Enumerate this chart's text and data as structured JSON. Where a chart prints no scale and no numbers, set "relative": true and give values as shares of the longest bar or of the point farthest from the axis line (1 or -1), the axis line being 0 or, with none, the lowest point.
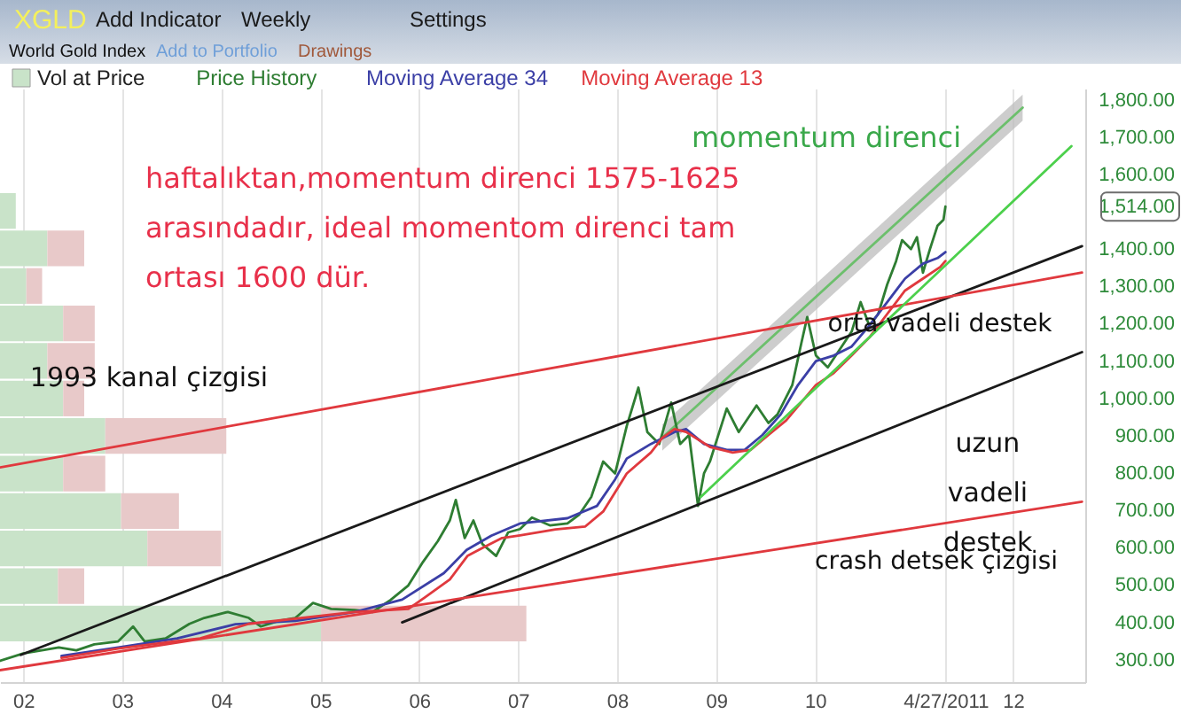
{
  "chart_data": [
    {
      "type": "line",
      "title": "XGLD",
      "subtitle": "World Gold Index",
      "xlim": [
        "2001-10-07",
        "2012-09-24"
      ],
      "ylim": [
        240,
        1830
      ],
      "xticks": [
        {
          "value": "2002-01-01",
          "label": "02"
        },
        {
          "value": "2003-01-01",
          "label": "03"
        },
        {
          "value": "2004-01-01",
          "label": "04"
        },
        {
          "value": "2005-01-01",
          "label": "05"
        },
        {
          "value": "2006-01-01",
          "label": "06"
        },
        {
          "value": "2007-01-01",
          "label": "07"
        },
        {
          "value": "2008-01-01",
          "label": "08"
        },
        {
          "value": "2009-01-01",
          "label": "09"
        },
        {
          "value": "2010-01-01",
          "label": "10"
        },
        {
          "value": "2011-04-27",
          "label": "4/27/2011"
        },
        {
          "value": "2012-01-01",
          "label": "12"
        }
      ],
      "yticks": [
        {
          "value": 300,
          "label": "300.00"
        },
        {
          "value": 400,
          "label": "400.00"
        },
        {
          "value": 500,
          "label": "500.00"
        },
        {
          "value": 600,
          "label": "600.00"
        },
        {
          "value": 700,
          "label": "700.00"
        },
        {
          "value": 800,
          "label": "800.00"
        },
        {
          "value": 900,
          "label": "900.00"
        },
        {
          "value": 1000,
          "label": "1,000.00"
        },
        {
          "value": 1100,
          "label": "1,100.00"
        },
        {
          "value": 1200,
          "label": "1,200.00"
        },
        {
          "value": 1300,
          "label": "1,300.00"
        },
        {
          "value": 1400,
          "label": "1,400.00"
        },
        {
          "value": 1514,
          "label": "1,514.00"
        },
        {
          "value": 1600,
          "label": "1,600.00"
        },
        {
          "value": 1700,
          "label": "1,700.00"
        },
        {
          "value": 1800,
          "label": "1,800.00"
        }
      ],
      "grid": "x",
      "legend": "top left",
      "series": [
        {
          "name": "Price History",
          "color": "#2e7d32",
          "x": [
            "2001-10-07",
            "2002-01-01",
            "2002-05-12",
            "2002-07-16",
            "2002-09-20",
            "2002-12-17",
            "2003-02-10",
            "2003-03-25",
            "2003-06-10",
            "2003-09-06",
            "2003-10-31",
            "2004-01-26",
            "2004-04-12",
            "2004-05-26",
            "2004-07-31",
            "2004-10-01",
            "2004-12-05",
            "2005-02-10",
            "2005-05-08",
            "2005-07-13",
            "2005-09-17",
            "2005-11-22",
            "2006-01-15",
            "2006-03-11",
            "2006-04-24",
            "2006-05-16",
            "2006-06-18",
            "2006-07-20",
            "2006-08-22",
            "2006-10-12",
            "2006-11-25",
            "2007-01-08",
            "2007-02-21",
            "2007-04-28",
            "2007-07-02",
            "2007-08-15",
            "2007-09-28",
            "2007-11-11",
            "2007-12-25",
            "2008-02-06",
            "2008-03-20",
            "2008-04-22",
            "2008-06-05",
            "2008-07-19",
            "2008-08-21",
            "2008-09-23",
            "2008-10-26",
            "2008-11-17",
            "2008-12-09",
            "2009-02-09",
            "2009-03-25",
            "2009-05-30",
            "2009-07-13",
            "2009-08-15",
            "2009-10-09",
            "2009-11-11",
            "2009-12-03",
            "2010-01-04",
            "2010-02-17",
            "2010-04-02",
            "2010-05-16",
            "2010-06-18",
            "2010-07-20",
            "2010-08-22",
            "2010-09-24",
            "2010-10-27",
            "2010-11-18",
            "2010-12-21",
            "2011-01-12",
            "2011-02-03",
            "2011-03-01",
            "2011-03-29",
            "2011-04-20",
            "2011-04-27"
          ],
          "values": [
            297,
            317,
            333,
            325,
            341,
            349,
            389,
            349,
            357,
            396,
            412,
            428,
            412,
            389,
            404,
            412,
            452,
            436,
            433,
            428,
            460,
            499,
            562,
            618,
            673,
            728,
            626,
            673,
            610,
            578,
            641,
            650,
            681,
            660,
            665,
            689,
            736,
            831,
            799,
            926,
            1029,
            910,
            878,
            989,
            878,
            902,
            712,
            799,
            831,
            973,
            910,
            981,
            934,
            957,
            1036,
            1147,
            1218,
            1115,
            1083,
            1131,
            1179,
            1258,
            1195,
            1226,
            1305,
            1368,
            1424,
            1400,
            1432,
            1337,
            1400,
            1463,
            1479,
            1514
          ]
        },
        {
          "name": "Moving Average 34",
          "color": "#3b3fa6",
          "x": [
            "2002-05-22",
            "2002-12-17",
            "2003-07-23",
            "2004-02-23",
            "2004-10-01",
            "2005-05-08",
            "2005-10-30",
            "2006-04-02",
            "2006-06-25",
            "2006-09-24",
            "2007-01-08",
            "2007-07-02",
            "2007-10-19",
            "2007-12-25",
            "2008-02-06",
            "2008-05-05",
            "2008-07-31",
            "2008-09-12",
            "2008-11-17",
            "2009-02-09",
            "2009-04-16",
            "2009-06-21",
            "2009-08-27",
            "2009-10-30",
            "2010-01-04",
            "2010-03-11",
            "2010-05-16",
            "2010-07-20",
            "2010-09-24",
            "2010-11-29",
            "2011-02-03",
            "2011-03-29",
            "2011-04-27"
          ],
          "values": [
            310,
            333,
            357,
            395,
            404,
            428,
            461,
            532,
            594,
            632,
            665,
            679,
            712,
            783,
            839,
            878,
            910,
            918,
            878,
            862,
            862,
            902,
            957,
            1036,
            1100,
            1115,
            1139,
            1195,
            1258,
            1321,
            1361,
            1376,
            1392
          ]
        },
        {
          "name": "Moving Average 13",
          "color": "#e0393e",
          "x": [
            "2002-05-22",
            "2002-12-17",
            "2003-07-23",
            "2003-10-16",
            "2004-04-12",
            "2005-05-08",
            "2005-11-22",
            "2006-01-22",
            "2006-04-24",
            "2006-06-28",
            "2006-08-29",
            "2006-11-03",
            "2007-01-08",
            "2007-05-19",
            "2007-09-06",
            "2007-11-11",
            "2008-02-06",
            "2008-05-05",
            "2008-06-16",
            "2008-07-31",
            "2008-09-12",
            "2008-12-09",
            "2009-03-03",
            "2009-05-08",
            "2009-07-13",
            "2009-09-16",
            "2010-01-04",
            "2010-03-11",
            "2010-05-16",
            "2010-07-20",
            "2010-09-24",
            "2010-11-29",
            "2011-02-03",
            "2011-04-08",
            "2011-04-27"
          ],
          "values": [
            305,
            330,
            350,
            357,
            396,
            428,
            436,
            467,
            515,
            578,
            602,
            626,
            633,
            649,
            657,
            697,
            799,
            855,
            894,
            918,
            910,
            870,
            855,
            862,
            902,
            941,
            1036,
            1068,
            1115,
            1163,
            1226,
            1289,
            1321,
            1352,
            1368
          ]
        },
        {
          "color": "#1a1a1a",
          "x": [
            "2001-12-23",
            "2012-09-12"
          ],
          "values": [
            313,
            1408
          ]
        },
        {
          "color": "#1a1a1a",
          "x": [
            "2005-10-30",
            "2012-09-12"
          ],
          "values": [
            400,
            1124
          ]
        },
        {
          "color": "#e0393e",
          "x": [
            "2001-10-07",
            "2012-09-12"
          ],
          "values": [
            815,
            1337
          ]
        },
        {
          "color": "#e0393e",
          "x": [
            "2001-10-07",
            "2012-09-12"
          ],
          "values": [
            272,
            723
          ]
        },
        {
          "color": "#4cd04c",
          "x": [
            "2008-11-05",
            "2012-08-04"
          ],
          "values": [
            736,
            1676
          ]
        },
        {
          "color": "#6cbf6c",
          "x": [
            "2008-06-16",
            "2012-02-06"
          ],
          "values": [
            895,
            1779
          ],
          "lower": [
            860,
            1744
          ],
          "upper": [
            930,
            1814
          ]
        }
      ],
      "annotations": [
        "Add Indicator",
        "Weekly",
        "Settings",
        "Add to Portfolio",
        "Drawings",
        "haftalıktan,momentum direnci 1575-1625 arasındadır, ideal momentom direnci tam ortası 1600 dür.",
        "momentum direnci",
        "1993 kanal çizgisi",
        "orta vadeli destek",
        "uzun vadeli destek",
        "crash detsek çizgisi"
      ]
    },
    {
      "type": "bar",
      "orientation": "horizontal",
      "relative": true,
      "stacked": true,
      "legend": "top left",
      "categories": [
        null,
        null,
        null,
        null,
        null,
        null,
        null,
        null,
        null,
        null,
        null,
        null
      ],
      "series": [
        {
          "name": "Vol at Price",
          "color": "#c9e3c9",
          "values": [
            0.03,
            0.09,
            0.05,
            0.12,
            0.09,
            0.12,
            0.2,
            0.12,
            0.23,
            0.28,
            0.11,
            0.61
          ]
        },
        {
          "color": "#e8c9c9",
          "values": [
            null,
            0.07,
            0.03,
            0.06,
            0.09,
            0.04,
            0.23,
            0.08,
            0.11,
            0.14,
            0.05,
            0.39
          ]
        }
      ]
    }
  ]
}
